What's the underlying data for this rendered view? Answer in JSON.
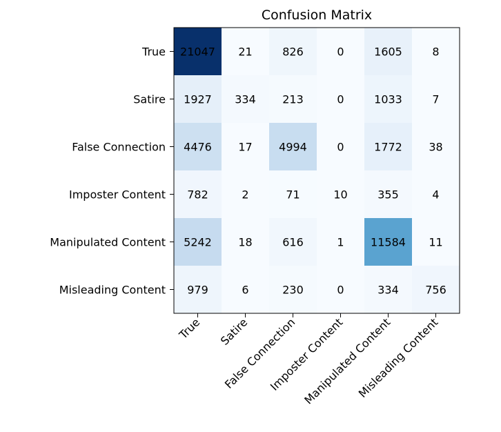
{
  "chart_data": {
    "type": "heatmap",
    "title": "Confusion Matrix",
    "row_labels": [
      "True",
      "Satire",
      "False Connection",
      "Imposter Content",
      "Manipulated Content",
      "Misleading Content"
    ],
    "col_labels": [
      "True",
      "Satire",
      "False Connection",
      "Imposter Content",
      "Manipulated Content",
      "Misleading Content"
    ],
    "values": [
      [
        21047,
        21,
        826,
        0,
        1605,
        8
      ],
      [
        1927,
        334,
        213,
        0,
        1033,
        7
      ],
      [
        4476,
        17,
        4994,
        0,
        1772,
        38
      ],
      [
        782,
        2,
        71,
        10,
        355,
        4
      ],
      [
        5242,
        18,
        616,
        1,
        11584,
        11
      ],
      [
        979,
        6,
        230,
        0,
        334,
        756
      ]
    ],
    "colormap": "Blues",
    "cell_text_color": "#000000",
    "colorbar": false
  }
}
